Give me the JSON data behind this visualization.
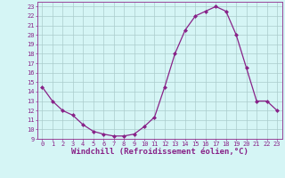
{
  "x": [
    0,
    1,
    2,
    3,
    4,
    5,
    6,
    7,
    8,
    9,
    10,
    11,
    12,
    13,
    14,
    15,
    16,
    17,
    18,
    19,
    20,
    21,
    22,
    23
  ],
  "y": [
    14.5,
    13.0,
    12.0,
    11.5,
    10.5,
    9.8,
    9.5,
    9.3,
    9.3,
    9.5,
    10.3,
    11.3,
    14.5,
    18.0,
    20.5,
    22.0,
    22.5,
    23.0,
    22.5,
    20.0,
    16.5,
    13.0,
    13.0,
    12.0
  ],
  "line_color": "#882288",
  "marker": "D",
  "marker_size": 2.0,
  "bg_color": "#d5f5f5",
  "grid_color": "#aacccc",
  "xlabel": "Windchill (Refroidissement éolien,°C)",
  "xlim": [
    -0.5,
    23.5
  ],
  "ylim": [
    9,
    23.5
  ],
  "yticks": [
    9,
    10,
    11,
    12,
    13,
    14,
    15,
    16,
    17,
    18,
    19,
    20,
    21,
    22,
    23
  ],
  "xticks": [
    0,
    1,
    2,
    3,
    4,
    5,
    6,
    7,
    8,
    9,
    10,
    11,
    12,
    13,
    14,
    15,
    16,
    17,
    18,
    19,
    20,
    21,
    22,
    23
  ],
  "tick_fontsize": 5.0,
  "xlabel_fontsize": 6.5,
  "spine_color": "#994499"
}
